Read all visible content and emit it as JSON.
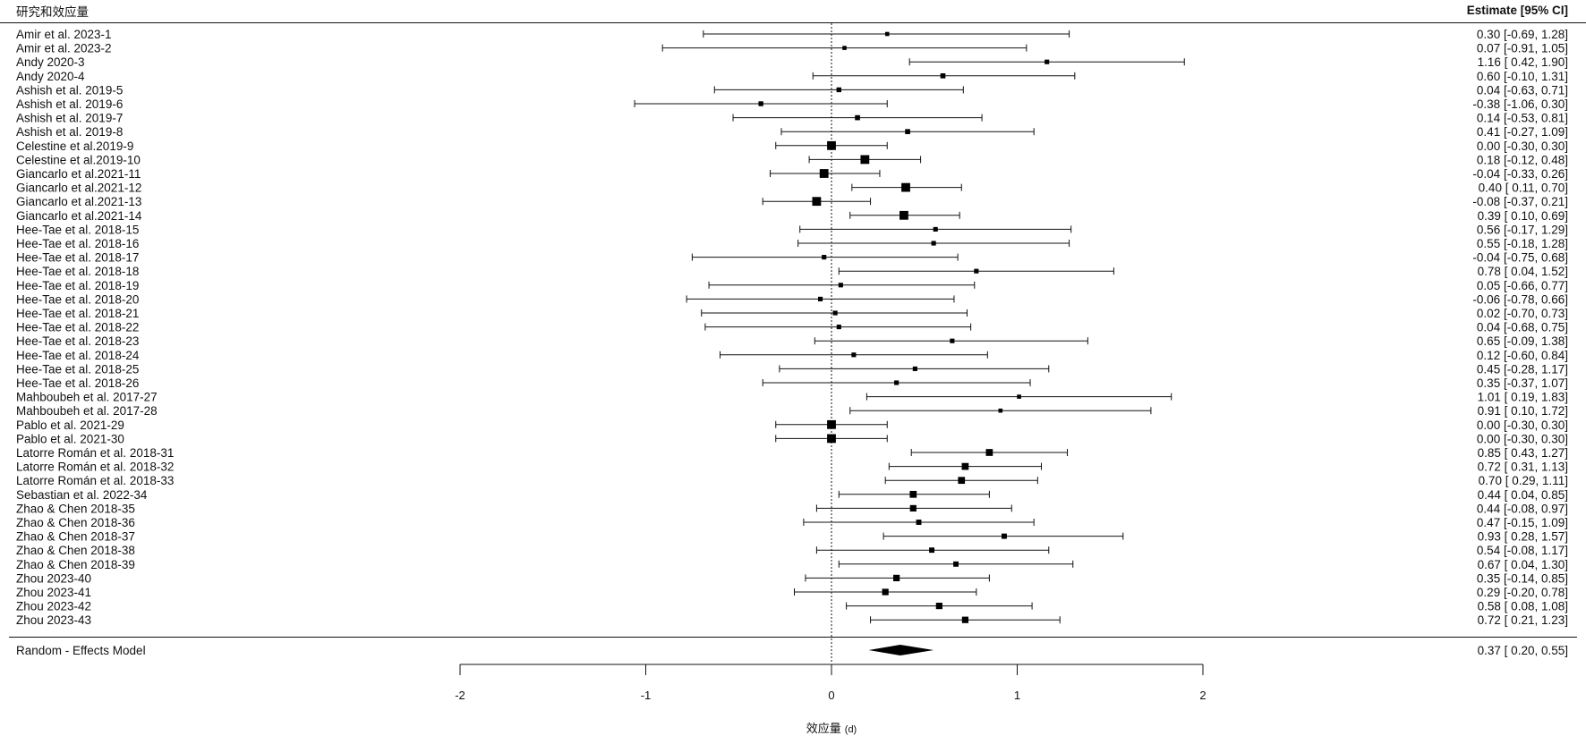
{
  "header": {
    "study_column": "研究和效应量",
    "estimate_column": "Estimate [95% CI]"
  },
  "summary": {
    "label": "Random - Effects Model",
    "text": "0.37 [ 0.20, 0.55]"
  },
  "axis": {
    "xlabel_main": "效应量",
    "xlabel_unit": "(d)",
    "ticks": [
      "-2",
      "-1",
      "0",
      "1",
      "2"
    ]
  },
  "chart_data": {
    "type": "forest",
    "xlim": [
      -2,
      2
    ],
    "reference_line": 0,
    "studies": [
      {
        "label": "Amir et al. 2023-1",
        "est": 0.3,
        "lo": -0.69,
        "hi": 1.28,
        "text": "0.30 [-0.69, 1.28]",
        "w": 1
      },
      {
        "label": "Amir et al. 2023-2",
        "est": 0.07,
        "lo": -0.91,
        "hi": 1.05,
        "text": "0.07 [-0.91, 1.05]",
        "w": 1
      },
      {
        "label": "Andy 2020-3",
        "est": 1.16,
        "lo": 0.42,
        "hi": 1.9,
        "text": "1.16 [ 0.42, 1.90]",
        "w": 1.2
      },
      {
        "label": "Andy 2020-4",
        "est": 0.6,
        "lo": -0.1,
        "hi": 1.31,
        "text": "0.60 [-0.10, 1.31]",
        "w": 1.4
      },
      {
        "label": "Ashish et al. 2019-5",
        "est": 0.04,
        "lo": -0.63,
        "hi": 0.71,
        "text": "0.04 [-0.63, 0.71]",
        "w": 1.3
      },
      {
        "label": "Ashish et al. 2019-6",
        "est": -0.38,
        "lo": -1.06,
        "hi": 0.3,
        "text": "-0.38 [-1.06, 0.30]",
        "w": 1.3
      },
      {
        "label": "Ashish et al. 2019-7",
        "est": 0.14,
        "lo": -0.53,
        "hi": 0.81,
        "text": "0.14 [-0.53, 0.81]",
        "w": 1.4
      },
      {
        "label": "Ashish et al. 2019-8",
        "est": 0.41,
        "lo": -0.27,
        "hi": 1.09,
        "text": "0.41 [-0.27, 1.09]",
        "w": 1.4
      },
      {
        "label": "Celestine et al.2019-9",
        "est": 0.0,
        "lo": -0.3,
        "hi": 0.3,
        "text": "0.00 [-0.30, 0.30]",
        "w": 3
      },
      {
        "label": "Celestine et al.2019-10",
        "est": 0.18,
        "lo": -0.12,
        "hi": 0.48,
        "text": "0.18 [-0.12, 0.48]",
        "w": 3
      },
      {
        "label": "Giancarlo et al.2021-11",
        "est": -0.04,
        "lo": -0.33,
        "hi": 0.26,
        "text": "-0.04 [-0.33, 0.26]",
        "w": 3
      },
      {
        "label": "Giancarlo et al.2021-12",
        "est": 0.4,
        "lo": 0.11,
        "hi": 0.7,
        "text": "0.40 [ 0.11, 0.70]",
        "w": 3
      },
      {
        "label": "Giancarlo et al.2021-13",
        "est": -0.08,
        "lo": -0.37,
        "hi": 0.21,
        "text": "-0.08 [-0.37, 0.21]",
        "w": 3
      },
      {
        "label": "Giancarlo et al.2021-14",
        "est": 0.39,
        "lo": 0.1,
        "hi": 0.69,
        "text": "0.39 [ 0.10, 0.69]",
        "w": 3
      },
      {
        "label": "Hee-Tae et al. 2018-15",
        "est": 0.56,
        "lo": -0.17,
        "hi": 1.29,
        "text": "0.56 [-0.17, 1.29]",
        "w": 1.2
      },
      {
        "label": "Hee-Tae et al. 2018-16",
        "est": 0.55,
        "lo": -0.18,
        "hi": 1.28,
        "text": "0.55 [-0.18, 1.28]",
        "w": 1.2
      },
      {
        "label": "Hee-Tae et al. 2018-17",
        "est": -0.04,
        "lo": -0.75,
        "hi": 0.68,
        "text": "-0.04 [-0.75, 0.68]",
        "w": 1.2
      },
      {
        "label": "Hee-Tae et al. 2018-18",
        "est": 0.78,
        "lo": 0.04,
        "hi": 1.52,
        "text": "0.78 [ 0.04, 1.52]",
        "w": 1.2
      },
      {
        "label": "Hee-Tae et al. 2018-19",
        "est": 0.05,
        "lo": -0.66,
        "hi": 0.77,
        "text": "0.05 [-0.66, 0.77]",
        "w": 1.2
      },
      {
        "label": "Hee-Tae et al. 2018-20",
        "est": -0.06,
        "lo": -0.78,
        "hi": 0.66,
        "text": "-0.06 [-0.78, 0.66]",
        "w": 1.2
      },
      {
        "label": "Hee-Tae et al. 2018-21",
        "est": 0.02,
        "lo": -0.7,
        "hi": 0.73,
        "text": "0.02 [-0.70, 0.73]",
        "w": 1.2
      },
      {
        "label": "Hee-Tae et al. 2018-22",
        "est": 0.04,
        "lo": -0.68,
        "hi": 0.75,
        "text": "0.04 [-0.68, 0.75]",
        "w": 1.2
      },
      {
        "label": "Hee-Tae et al. 2018-23",
        "est": 0.65,
        "lo": -0.09,
        "hi": 1.38,
        "text": "0.65 [-0.09, 1.38]",
        "w": 1.2
      },
      {
        "label": "Hee-Tae et al. 2018-24",
        "est": 0.12,
        "lo": -0.6,
        "hi": 0.84,
        "text": "0.12 [-0.60, 0.84]",
        "w": 1.2
      },
      {
        "label": "Hee-Tae et al. 2018-25",
        "est": 0.45,
        "lo": -0.28,
        "hi": 1.17,
        "text": "0.45 [-0.28, 1.17]",
        "w": 1.2
      },
      {
        "label": "Hee-Tae et al. 2018-26",
        "est": 0.35,
        "lo": -0.37,
        "hi": 1.07,
        "text": "0.35 [-0.37, 1.07]",
        "w": 1.2
      },
      {
        "label": "Mahboubeh et al. 2017-27",
        "est": 1.01,
        "lo": 0.19,
        "hi": 1.83,
        "text": "1.01 [ 0.19, 1.83]",
        "w": 1
      },
      {
        "label": "Mahboubeh et al. 2017-28",
        "est": 0.91,
        "lo": 0.1,
        "hi": 1.72,
        "text": "0.91 [ 0.10, 1.72]",
        "w": 1
      },
      {
        "label": "Pablo et al. 2021-29",
        "est": 0.0,
        "lo": -0.3,
        "hi": 0.3,
        "text": "0.00 [-0.30, 0.30]",
        "w": 3
      },
      {
        "label": "Pablo et al. 2021-30",
        "est": 0.0,
        "lo": -0.3,
        "hi": 0.3,
        "text": "0.00 [-0.30, 0.30]",
        "w": 3
      },
      {
        "label": "Latorre Román et al. 2018-31",
        "est": 0.85,
        "lo": 0.43,
        "hi": 1.27,
        "text": "0.85 [ 0.43, 1.27]",
        "w": 2.2
      },
      {
        "label": "Latorre Román et al. 2018-32",
        "est": 0.72,
        "lo": 0.31,
        "hi": 1.13,
        "text": "0.72 [ 0.31, 1.13]",
        "w": 2.2
      },
      {
        "label": "Latorre Román et al. 2018-33",
        "est": 0.7,
        "lo": 0.29,
        "hi": 1.11,
        "text": "0.70 [ 0.29, 1.11]",
        "w": 2.2
      },
      {
        "label": "Sebastian et al. 2022-34",
        "est": 0.44,
        "lo": 0.04,
        "hi": 0.85,
        "text": "0.44 [ 0.04, 0.85]",
        "w": 2.2
      },
      {
        "label": "Zhao & Chen 2018-35",
        "est": 0.44,
        "lo": -0.08,
        "hi": 0.97,
        "text": "0.44 [-0.08, 0.97]",
        "w": 2
      },
      {
        "label": "Zhao & Chen 2018-36",
        "est": 0.47,
        "lo": -0.15,
        "hi": 1.09,
        "text": "0.47 [-0.15, 1.09]",
        "w": 1.5
      },
      {
        "label": "Zhao & Chen 2018-37",
        "est": 0.93,
        "lo": 0.28,
        "hi": 1.57,
        "text": "0.93 [ 0.28, 1.57]",
        "w": 1.5
      },
      {
        "label": "Zhao & Chen 2018-38",
        "est": 0.54,
        "lo": -0.08,
        "hi": 1.17,
        "text": "0.54 [-0.08, 1.17]",
        "w": 1.5
      },
      {
        "label": "Zhao & Chen 2018-39",
        "est": 0.67,
        "lo": 0.04,
        "hi": 1.3,
        "text": "0.67 [ 0.04, 1.30]",
        "w": 1.5
      },
      {
        "label": "Zhou 2023-40",
        "est": 0.35,
        "lo": -0.14,
        "hi": 0.85,
        "text": "0.35 [-0.14, 0.85]",
        "w": 2
      },
      {
        "label": "Zhou 2023-41",
        "est": 0.29,
        "lo": -0.2,
        "hi": 0.78,
        "text": "0.29 [-0.20, 0.78]",
        "w": 2
      },
      {
        "label": "Zhou 2023-42",
        "est": 0.58,
        "lo": 0.08,
        "hi": 1.08,
        "text": "0.58 [ 0.08, 1.08]",
        "w": 2
      },
      {
        "label": "Zhou 2023-43",
        "est": 0.72,
        "lo": 0.21,
        "hi": 1.23,
        "text": "0.72 [ 0.21, 1.23]",
        "w": 2
      }
    ],
    "summary": {
      "label": "Random - Effects Model",
      "est": 0.37,
      "lo": 0.2,
      "hi": 0.55
    },
    "xlabel": "效应量 (d)",
    "xticks": [
      -2,
      -1,
      0,
      1,
      2
    ]
  }
}
